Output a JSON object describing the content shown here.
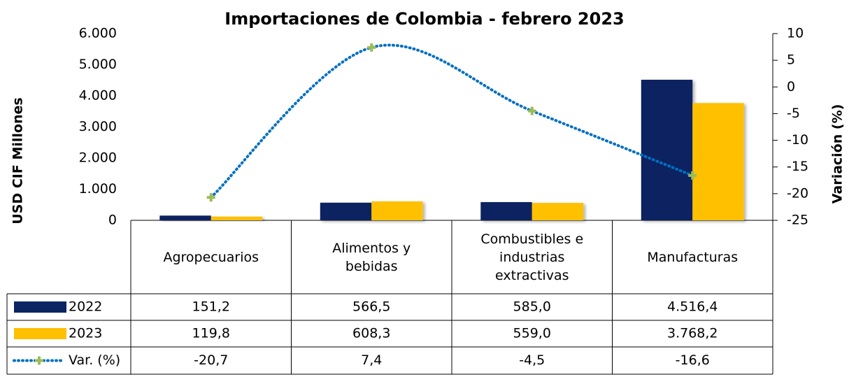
{
  "chart_data": {
    "type": "bar",
    "title": "Importaciones de Colombia - febrero 2023",
    "y_label": "USD CIF Millones",
    "y2_label": "Variación (%)",
    "categories": [
      "Agropecuarios",
      "Alimentos y bebidas",
      "Combustibles e industrias extractivas",
      "Manufacturas"
    ],
    "series": [
      {
        "name": "2022",
        "type": "bar",
        "color": "#0c2461",
        "values": [
          151.2,
          566.5,
          585.0,
          4516.4
        ],
        "value_labels": [
          "151,2",
          "566,5",
          "585,0",
          "4.516,4"
        ]
      },
      {
        "name": "2023",
        "type": "bar",
        "color": "#ffc000",
        "values": [
          119.8,
          608.3,
          559.0,
          3768.2
        ],
        "value_labels": [
          "119,8",
          "608,3",
          "559,0",
          "3.768,2"
        ]
      },
      {
        "name": "Var. (%)",
        "type": "line",
        "axis": "y2",
        "color": "#0070c0",
        "marker_color": "#9bbb59",
        "values": [
          -20.7,
          7.4,
          -4.5,
          -16.6
        ],
        "value_labels": [
          "-20,7",
          "7,4",
          "-4,5",
          "-16,6"
        ]
      }
    ],
    "ylim": [
      0,
      6000
    ],
    "yticks": [
      0,
      {
        "value": 1000,
        "label": "1.000"
      },
      {
        "value": 2000,
        "label": "2.000"
      },
      {
        "value": 3000,
        "label": "3.000"
      },
      {
        "value": 4000,
        "label": "4.000"
      },
      {
        "value": 5000,
        "label": "5.000"
      },
      {
        "value": 6000,
        "label": "6.000"
      }
    ],
    "y2lim": [
      -25,
      10
    ],
    "y2ticks": [
      -25,
      -20,
      -15,
      -10,
      -5,
      0,
      5,
      10
    ]
  }
}
